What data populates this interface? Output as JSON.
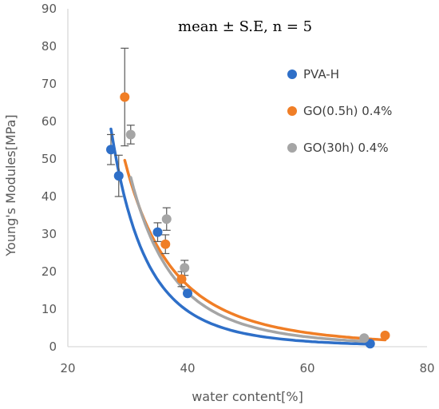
{
  "chart_data": {
    "type": "scatter",
    "annotation": "mean ± S.E, n = 5",
    "xlabel": "water content[%]",
    "ylabel": "Young's Modules[MPa]",
    "xlim": [
      20,
      80
    ],
    "ylim": [
      0,
      90
    ],
    "x_ticks": [
      "20",
      "40",
      "60",
      "80"
    ],
    "y_ticks": [
      "0",
      "10",
      "20",
      "30",
      "40",
      "50",
      "60",
      "70",
      "80",
      "90"
    ],
    "grid": false,
    "legend_position": "right",
    "series": [
      {
        "name": "PVA-H",
        "color": "#2E6FC8",
        "points": [
          {
            "x": 27.2,
            "y": 52.5,
            "err": 4.0
          },
          {
            "x": 28.5,
            "y": 45.5,
            "err": 5.5
          },
          {
            "x": 35.0,
            "y": 30.5,
            "err": 2.5
          },
          {
            "x": 40.0,
            "y": 14.2,
            "err": 0
          },
          {
            "x": 70.5,
            "y": 0.8,
            "err": 0
          }
        ],
        "trendline": {
          "type": "power",
          "a": 300000000,
          "b": -4.68
        }
      },
      {
        "name": "GO(0.5h) 0.4%",
        "color": "#F07E26",
        "points": [
          {
            "x": 29.5,
            "y": 66.5,
            "err": 13.0
          },
          {
            "x": 36.3,
            "y": 27.3,
            "err": 2.5
          },
          {
            "x": 39.0,
            "y": 18.0,
            "err": 2.0
          },
          {
            "x": 73.0,
            "y": 3.0,
            "err": 0
          }
        ],
        "trendline": {
          "type": "power",
          "a": 11500000,
          "b": -3.65
        }
      },
      {
        "name": "GO(30h) 0.4%",
        "color": "#A5A5A5",
        "points": [
          {
            "x": 30.5,
            "y": 56.5,
            "err": 2.5
          },
          {
            "x": 36.5,
            "y": 34.0,
            "err": 3.0
          },
          {
            "x": 39.5,
            "y": 21.0,
            "err": 2.0
          },
          {
            "x": 69.5,
            "y": 2.3,
            "err": 0
          }
        ],
        "trendline": {
          "type": "power",
          "a": 80000000,
          "b": -4.21
        }
      }
    ]
  }
}
